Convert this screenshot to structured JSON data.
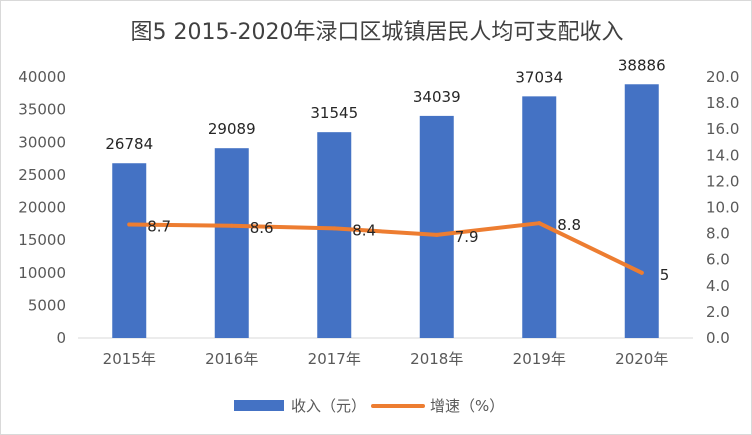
{
  "chart_data": {
    "type": "bar",
    "title": "图5 2015-2020年渌口区城镇居民人均可支配收入",
    "categories": [
      "2015年",
      "2016年",
      "2017年",
      "2018年",
      "2019年",
      "2020年"
    ],
    "series": [
      {
        "name": "收入（元）",
        "type": "bar",
        "axis": "left",
        "color": "#4472C4",
        "values": [
          26784,
          29089,
          31545,
          34039,
          37034,
          38886
        ]
      },
      {
        "name": "增速（%）",
        "type": "line",
        "axis": "right",
        "color": "#ED7D31",
        "values": [
          8.7,
          8.6,
          8.4,
          7.9,
          8.8,
          5
        ]
      }
    ],
    "y_left": {
      "min": 0,
      "max": 40000,
      "step": 5000,
      "ticks": [
        "0",
        "5000",
        "10000",
        "15000",
        "20000",
        "25000",
        "30000",
        "35000",
        "40000"
      ]
    },
    "y_right": {
      "min": 0,
      "max": 20,
      "step": 2,
      "ticks": [
        "0.0",
        "2.0",
        "4.0",
        "6.0",
        "8.0",
        "10.0",
        "12.0",
        "14.0",
        "16.0",
        "18.0",
        "20.0"
      ]
    },
    "grid": false,
    "legend": "bottom",
    "data_labels": true
  }
}
